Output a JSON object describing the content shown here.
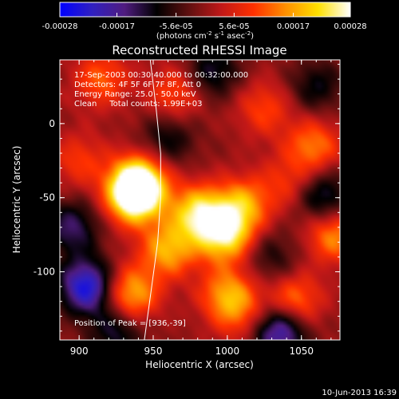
{
  "colorbar": {
    "ticks": [
      "-0.00028",
      "-0.00017",
      "-5.6e-05",
      "5.6e-05",
      "0.00017",
      "0.00028"
    ],
    "units_main": "(photons cm",
    "units_exp1": "-2",
    "units_mid": " s",
    "units_exp2": "-1",
    "units_tail": " asec",
    "units_exp3": "-2",
    "units_close": ")",
    "colors": [
      "#0000ff",
      "#3020c0",
      "#501c80",
      "#000000",
      "#601010",
      "#c01818",
      "#ff3000",
      "#ff9000",
      "#ffe000",
      "#ffffff"
    ]
  },
  "header": {
    "line1": "17-Sep-2003 00:30:40.000 to 00:32:00.000",
    "line2": "Detectors: 4F 5F 6F 7F 8F, Att 0",
    "line3": "Energy Range: 25.0 - 50.0 keV",
    "line4": "Clean     Total counts: 1.99E+03"
  },
  "peak_label": "Position of Peak = [936,-39]",
  "footer_date": "10-Jun-2013 16:39",
  "chart_data": {
    "type": "heatmap",
    "title": "Reconstructed RHESSI Image",
    "xlabel": "Heliocentric X (arcsec)",
    "ylabel": "Heliocentric Y (arcsec)",
    "xlim": [
      887,
      1076
    ],
    "ylim": [
      -146,
      43
    ],
    "xticks": [
      900,
      950,
      1000,
      1050
    ],
    "yticks": [
      0,
      -50,
      -100
    ],
    "value_range": [
      -0.00028,
      0.00028
    ],
    "peak": [
      936,
      -39
    ],
    "blobs": [
      {
        "x": 940,
        "y": -40,
        "v": 0.00028
      },
      {
        "x": 937,
        "y": -50,
        "v": 0.00024
      },
      {
        "x": 980,
        "y": -60,
        "v": 0.00022
      },
      {
        "x": 998,
        "y": -75,
        "v": 0.00024
      },
      {
        "x": 1010,
        "y": -55,
        "v": 0.00017
      },
      {
        "x": 960,
        "y": -85,
        "v": 0.00018
      },
      {
        "x": 935,
        "y": -115,
        "v": 0.00019
      },
      {
        "x": 1000,
        "y": -115,
        "v": 0.00016
      },
      {
        "x": 1045,
        "y": -120,
        "v": 0.00015
      },
      {
        "x": 1072,
        "y": -75,
        "v": 0.00016
      },
      {
        "x": 1058,
        "y": -15,
        "v": 0.00014
      },
      {
        "x": 915,
        "y": 30,
        "v": 0.00012
      },
      {
        "x": 965,
        "y": 20,
        "v": 0.00011
      },
      {
        "x": 1025,
        "y": 10,
        "v": 0.0001
      },
      {
        "x": 900,
        "y": -25,
        "v": 9e-05
      },
      {
        "x": 1040,
        "y": -40,
        "v": 8e-05
      },
      {
        "x": 1010,
        "y": -130,
        "v": 9e-05
      },
      {
        "x": 905,
        "y": -110,
        "v": -0.00025
      },
      {
        "x": 1035,
        "y": -140,
        "v": -0.00022
      },
      {
        "x": 1065,
        "y": -50,
        "v": -0.00014
      },
      {
        "x": 960,
        "y": -10,
        "v": -0.0001
      },
      {
        "x": 990,
        "y": 35,
        "v": -0.00012
      },
      {
        "x": 1060,
        "y": 25,
        "v": -0.0001
      },
      {
        "x": 895,
        "y": -70,
        "v": -0.00014
      },
      {
        "x": 925,
        "y": -140,
        "v": -0.00012
      },
      {
        "x": 1030,
        "y": -90,
        "v": -8e-05
      }
    ],
    "limb_x": [
      948,
      952,
      955,
      955,
      953,
      949,
      944
    ],
    "limb_y": [
      43,
      10,
      -20,
      -50,
      -80,
      -110,
      -146
    ]
  }
}
